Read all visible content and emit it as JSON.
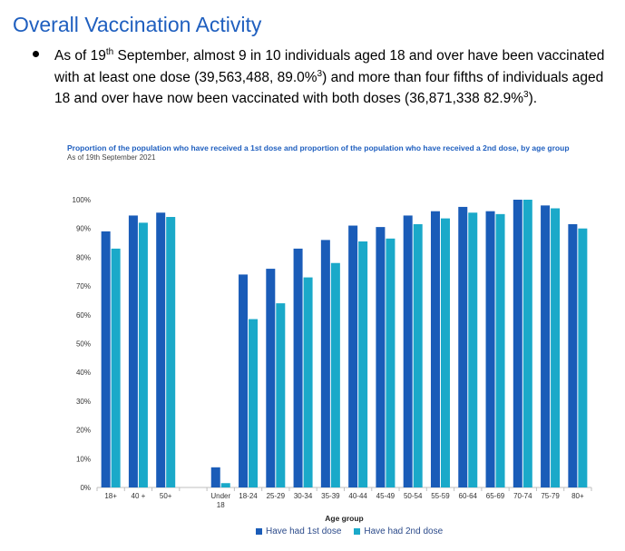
{
  "heading": "Overall Vaccination Activity",
  "bullet": {
    "p1": "As of 19",
    "sup1": "th",
    "p2": " September, almost 9 in 10 individuals aged 18 and over have been vaccinated with at least one dose (39,563,488, 89.0%",
    "sup2": "3",
    "p3": ") and more than four fifths of individuals aged 18 and over have now been vaccinated with both doses (36,871,338 82.9%",
    "sup3": "3",
    "p4": ")."
  },
  "chart_data": {
    "type": "bar",
    "title": "Proportion of the population who have received a 1st dose and proportion of the population who have received a 2nd dose, by age group",
    "subtitle": "As of 19th September 2021",
    "xlabel": "Age group",
    "ylabel": "",
    "ylim": [
      0,
      100
    ],
    "yticks": [
      "0%",
      "10%",
      "20%",
      "30%",
      "40%",
      "50%",
      "60%",
      "70%",
      "80%",
      "90%",
      "100%"
    ],
    "categories": [
      "18+",
      "40 +",
      "50+",
      "",
      "Under 18",
      "18-24",
      "25-29",
      "30-34",
      "35-39",
      "40-44",
      "45-49",
      "50-54",
      "55-59",
      "60-64",
      "65-69",
      "70-74",
      "75-79",
      "80+"
    ],
    "series": [
      {
        "name": "Have had 1st dose",
        "color": "#1a5cb8",
        "values": [
          89,
          94.5,
          95.5,
          null,
          7,
          74,
          76,
          83,
          86,
          91,
          90.5,
          94.5,
          96,
          97.5,
          96,
          100,
          98,
          91.5
        ]
      },
      {
        "name": "Have had 2nd dose",
        "color": "#1aa9c9",
        "values": [
          83,
          92,
          94,
          null,
          1.5,
          58.5,
          64,
          73,
          78,
          85.5,
          86.5,
          91.5,
          93.5,
          95.5,
          95,
          100,
          97,
          90
        ]
      }
    ],
    "grid": false,
    "legend_position": "bottom"
  }
}
